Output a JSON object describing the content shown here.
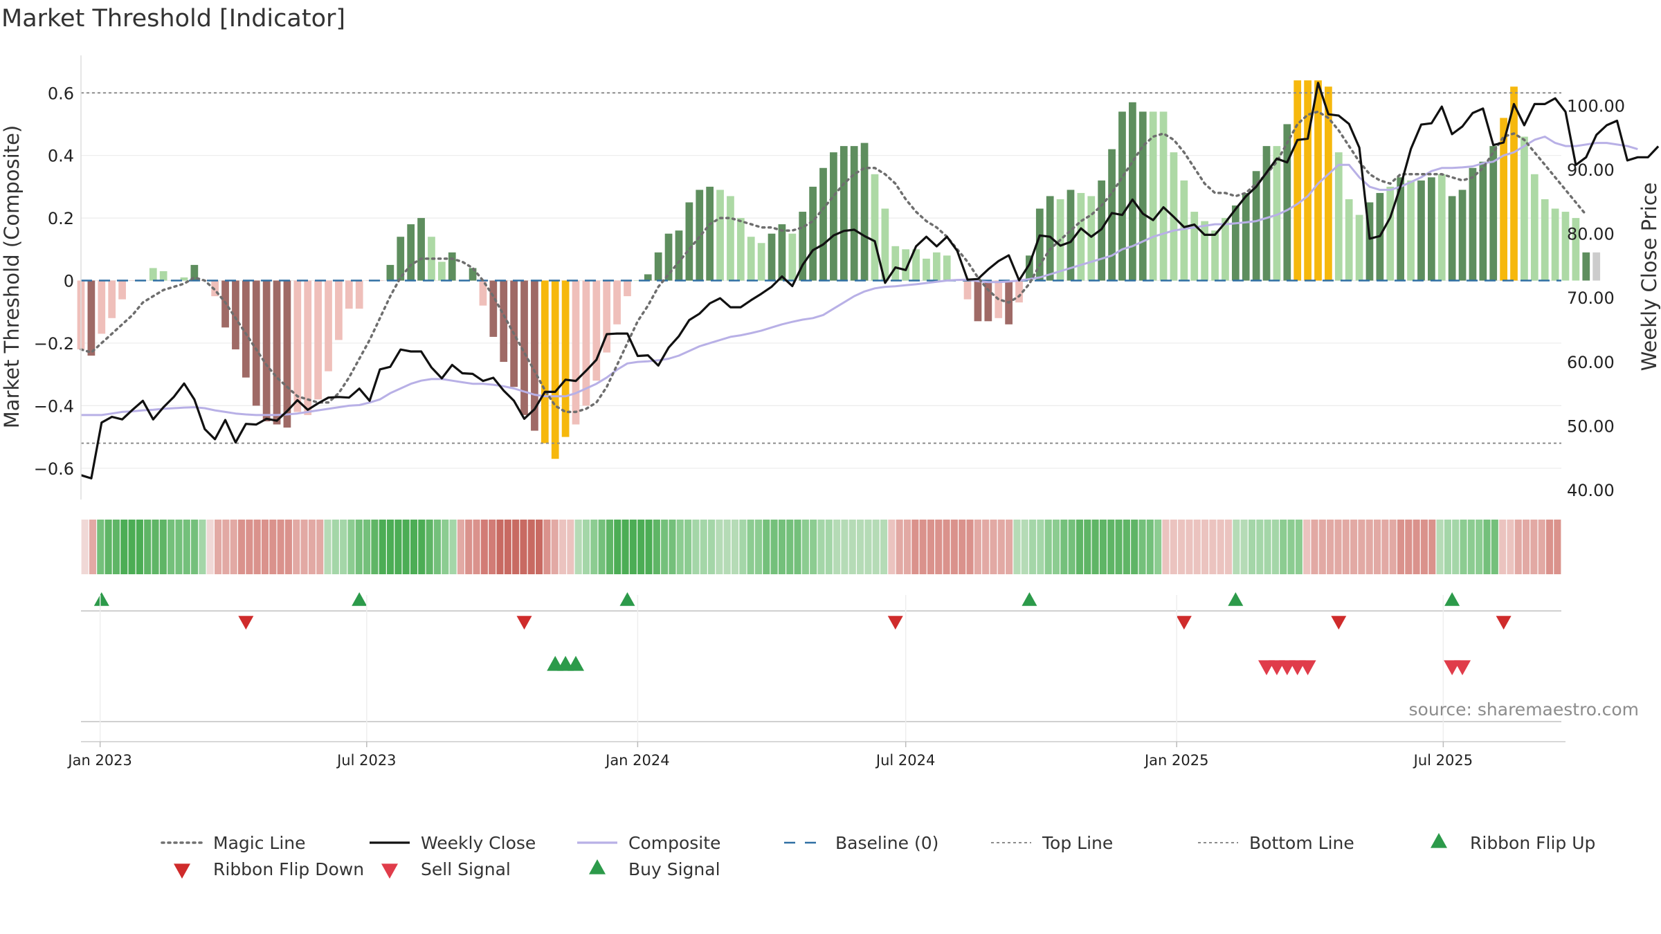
{
  "chart_data": {
    "type": "bar",
    "title": "Market Threshold [Indicator]",
    "ylabel_left": "Market Threshold (Composite)",
    "ylabel_right": "Weekly Close Price",
    "ylim_left": [
      -0.7,
      0.72
    ],
    "ylim_right": [
      38.5,
      107.8
    ],
    "yticks_left": [
      "0.6",
      "0.4",
      "0.2",
      "0",
      "−0.2",
      "−0.4",
      "−0.6"
    ],
    "yticks_left_values": [
      0.6,
      0.4,
      0.2,
      0,
      -0.2,
      -0.4,
      -0.6
    ],
    "yticks_right": [
      "100.00",
      "90.00",
      "80.00",
      "70.00",
      "60.00",
      "50.00",
      "40.00"
    ],
    "yticks_right_values": [
      100,
      90,
      80,
      70,
      60,
      50,
      40
    ],
    "x_range": [
      "2022-12-19",
      "2025-09-22"
    ],
    "date_ticks": [
      {
        "date": "2023-01-01",
        "label": "Jan 2023"
      },
      {
        "date": "2023-07-01",
        "label": "Jul 2023"
      },
      {
        "date": "2024-01-01",
        "label": "Jan 2024"
      },
      {
        "date": "2024-07-01",
        "label": "Jul 2024"
      },
      {
        "date": "2025-01-01",
        "label": "Jan 2025"
      },
      {
        "date": "2025-07-01",
        "label": "Jul 2025"
      }
    ],
    "top_line": 0.6,
    "bottom_line": -0.52,
    "baseline": 0,
    "first_week": "2022-12-19",
    "composite_bars": [
      -0.22,
      -0.24,
      -0.17,
      -0.12,
      -0.06,
      0,
      0,
      0.04,
      0.03,
      0,
      0.01,
      0.05,
      0,
      -0.05,
      -0.15,
      -0.22,
      -0.31,
      -0.4,
      -0.45,
      -0.46,
      -0.47,
      -0.42,
      -0.43,
      -0.38,
      -0.29,
      -0.19,
      -0.09,
      -0.09,
      0,
      0,
      0.05,
      0.14,
      0.18,
      0.2,
      0.14,
      0.06,
      0.09,
      0,
      0.04,
      -0.08,
      -0.18,
      -0.26,
      -0.34,
      -0.43,
      -0.48,
      -0.52,
      -0.57,
      -0.5,
      -0.46,
      -0.4,
      -0.32,
      -0.23,
      -0.14,
      -0.05,
      0,
      0.02,
      0.09,
      0.15,
      0.16,
      0.25,
      0.29,
      0.3,
      0.29,
      0.27,
      0.2,
      0.14,
      0.12,
      0.15,
      0.18,
      0.15,
      0.22,
      0.3,
      0.36,
      0.41,
      0.43,
      0.43,
      0.44,
      0.34,
      0.23,
      0.11,
      0.1,
      0.1,
      0.07,
      0.09,
      0.08,
      0,
      -0.06,
      -0.13,
      -0.13,
      -0.12,
      -0.14,
      -0.07,
      0.08,
      0.23,
      0.27,
      0.26,
      0.29,
      0.28,
      0.27,
      0.32,
      0.42,
      0.54,
      0.57,
      0.54,
      0.54,
      0.54,
      0.41,
      0.32,
      0.22,
      0.19,
      0.16,
      0.2,
      0.24,
      0.28,
      0.35,
      0.43,
      0.43,
      0.5,
      0.64,
      0.64,
      0.64,
      0.62,
      0.41,
      0.26,
      0.21,
      0.25,
      0.28,
      0.3,
      0.33,
      0.32,
      0.32,
      0.33,
      0.34,
      0.27,
      0.29,
      0.36,
      0.38,
      0.43,
      0.52,
      0.62,
      0.46,
      0.34,
      0.26,
      0.23,
      0.22,
      0.2,
      0.09,
      0.09
    ],
    "bar_colors": [
      "#efbfba",
      "#9f6a66",
      "#efbfba",
      "#efbfba",
      "#efbfba",
      "#efbfba",
      "#efbfba",
      "#add9a5",
      "#add9a5",
      "#add9a5",
      "#add9a5",
      "#5e8e5e",
      "#efbfba",
      "#efbfba",
      "#9f6a66",
      "#9f6a66",
      "#9f6a66",
      "#9f6a66",
      "#9f6a66",
      "#9f6a66",
      "#9f6a66",
      "#efbfba",
      "#efbfba",
      "#efbfba",
      "#efbfba",
      "#efbfba",
      "#efbfba",
      "#efbfba",
      "#efbfba",
      "#efbfba",
      "#5e8e5e",
      "#5e8e5e",
      "#5e8e5e",
      "#5e8e5e",
      "#add9a5",
      "#add9a5",
      "#5e8e5e",
      "#add9a5",
      "#5e8e5e",
      "#efbfba",
      "#9f6a66",
      "#9f6a66",
      "#9f6a66",
      "#9f6a66",
      "#9f6a66",
      "#f6b80d",
      "#f6b80d",
      "#f6b80d",
      "#efbfba",
      "#efbfba",
      "#efbfba",
      "#efbfba",
      "#efbfba",
      "#efbfba",
      "#add9a5",
      "#5e8e5e",
      "#5e8e5e",
      "#5e8e5e",
      "#5e8e5e",
      "#5e8e5e",
      "#5e8e5e",
      "#5e8e5e",
      "#add9a5",
      "#add9a5",
      "#add9a5",
      "#add9a5",
      "#add9a5",
      "#5e8e5e",
      "#5e8e5e",
      "#add9a5",
      "#5e8e5e",
      "#5e8e5e",
      "#5e8e5e",
      "#5e8e5e",
      "#5e8e5e",
      "#5e8e5e",
      "#5e8e5e",
      "#add9a5",
      "#add9a5",
      "#add9a5",
      "#add9a5",
      "#add9a5",
      "#add9a5",
      "#add9a5",
      "#add9a5",
      "#efbfba",
      "#efbfba",
      "#9f6a66",
      "#9f6a66",
      "#efbfba",
      "#9f6a66",
      "#efbfba",
      "#5e8e5e",
      "#5e8e5e",
      "#5e8e5e",
      "#add9a5",
      "#5e8e5e",
      "#add9a5",
      "#add9a5",
      "#5e8e5e",
      "#5e8e5e",
      "#5e8e5e",
      "#5e8e5e",
      "#5e8e5e",
      "#add9a5",
      "#add9a5",
      "#add9a5",
      "#add9a5",
      "#add9a5",
      "#add9a5",
      "#add9a5",
      "#add9a5",
      "#5e8e5e",
      "#5e8e5e",
      "#5e8e5e",
      "#5e8e5e",
      "#add9a5",
      "#5e8e5e",
      "#f6b80d",
      "#f6b80d",
      "#f6b80d",
      "#f6b80d",
      "#add9a5",
      "#add9a5",
      "#add9a5",
      "#5e8e5e",
      "#5e8e5e",
      "#add9a5",
      "#5e8e5e",
      "#add9a5",
      "#5e8e5e",
      "#5e8e5e",
      "#add9a5",
      "#5e8e5e",
      "#5e8e5e",
      "#5e8e5e",
      "#5e8e5e",
      "#5e8e5e",
      "#f6b80d",
      "#f6b80d",
      "#add9a5",
      "#add9a5",
      "#add9a5",
      "#add9a5",
      "#add9a5",
      "#add9a5",
      "#5e8e5e"
    ],
    "weekly_close": [
      42.3,
      41.8,
      50.5,
      51.4,
      51,
      52.5,
      53.9,
      51,
      52.9,
      54.5,
      56.6,
      54.1,
      49.5,
      47.9,
      50.9,
      47.4,
      50.3,
      50.2,
      51.1,
      50.8,
      52.3,
      54,
      52.5,
      53.5,
      54.4,
      54.5,
      54.4,
      55.8,
      53.9,
      58.8,
      59.2,
      61.9,
      61.6,
      61.6,
      59.1,
      57.4,
      59.5,
      58.2,
      58.1,
      57,
      57.5,
      55.5,
      53.9,
      51.1,
      52.6,
      55.3,
      55.3,
      57.2,
      57,
      58.6,
      60.3,
      64.3,
      64.4,
      64.4,
      60.9,
      61,
      59.4,
      62.2,
      64,
      66.5,
      67.5,
      69.1,
      69.9,
      68.5,
      68.5,
      69.6,
      70.6,
      71.7,
      73.3,
      71.8,
      75.1,
      77.4,
      78.3,
      79.7,
      80.4,
      80.6,
      79.6,
      78.8,
      72.3,
      74.7,
      74.3,
      78,
      79.5,
      78,
      79.5,
      77.3,
      72.8,
      72.9,
      74.4,
      75.7,
      76.6,
      72.7,
      75.2,
      79.7,
      79.5,
      78.1,
      78.7,
      80.8,
      79.5,
      80.7,
      83.2,
      82.9,
      85.3,
      83.1,
      82.1,
      84.1,
      82.6,
      81,
      81.4,
      79.8,
      79.8,
      81.7,
      83.8,
      85.8,
      87.3,
      89.5,
      91.7,
      91.1,
      94.6,
      94.8,
      103.5,
      98.6,
      98.4,
      97.1,
      93.4,
      79.2,
      79.6,
      82.5,
      87.4,
      93.2,
      97,
      97.2,
      99.8,
      95.5,
      96.7,
      98.8,
      99.5,
      93.8,
      94.2,
      100.2,
      96.9,
      100.2,
      100.2,
      101.1,
      99,
      90.7,
      91.9,
      95.4,
      96.9,
      97.6,
      91.4,
      91.9,
      91.9,
      93.6
    ],
    "magic_line": [
      -0.22,
      -0.23,
      -0.2,
      -0.17,
      -0.14,
      -0.11,
      -0.07,
      -0.05,
      -0.03,
      -0.02,
      -0.01,
      0.01,
      0,
      -0.03,
      -0.07,
      -0.12,
      -0.17,
      -0.22,
      -0.27,
      -0.31,
      -0.34,
      -0.37,
      -0.38,
      -0.39,
      -0.39,
      -0.36,
      -0.31,
      -0.25,
      -0.19,
      -0.12,
      -0.05,
      0.01,
      0.05,
      0.07,
      0.07,
      0.07,
      0.07,
      0.06,
      0.04,
      0,
      -0.05,
      -0.11,
      -0.17,
      -0.23,
      -0.29,
      -0.35,
      -0.4,
      -0.42,
      -0.42,
      -0.41,
      -0.39,
      -0.34,
      -0.27,
      -0.2,
      -0.13,
      -0.08,
      -0.02,
      0.02,
      0.06,
      0.1,
      0.14,
      0.18,
      0.2,
      0.2,
      0.19,
      0.18,
      0.17,
      0.17,
      0.16,
      0.16,
      0.17,
      0.19,
      0.23,
      0.27,
      0.31,
      0.34,
      0.36,
      0.36,
      0.34,
      0.31,
      0.26,
      0.22,
      0.19,
      0.17,
      0.14,
      0.1,
      0.06,
      0.01,
      -0.03,
      -0.06,
      -0.07,
      -0.05,
      -0.01,
      0.05,
      0.1,
      0.13,
      0.16,
      0.19,
      0.21,
      0.24,
      0.28,
      0.33,
      0.38,
      0.43,
      0.46,
      0.47,
      0.45,
      0.41,
      0.36,
      0.31,
      0.28,
      0.28,
      0.27,
      0.28,
      0.31,
      0.34,
      0.38,
      0.44,
      0.5,
      0.53,
      0.54,
      0.52,
      0.48,
      0.43,
      0.38,
      0.34,
      0.32,
      0.31,
      0.34,
      0.34,
      0.34,
      0.34,
      0.34,
      0.33,
      0.32,
      0.33,
      0.36,
      0.41,
      0.46,
      0.47,
      0.45,
      0.41,
      0.37,
      0.33,
      0.29,
      0.25,
      0.21
    ],
    "composite_line": [
      -0.43,
      -0.43,
      -0.43,
      -0.425,
      -0.42,
      -0.418,
      -0.415,
      -0.413,
      -0.41,
      -0.408,
      -0.406,
      -0.405,
      -0.408,
      -0.415,
      -0.42,
      -0.425,
      -0.428,
      -0.43,
      -0.43,
      -0.43,
      -0.428,
      -0.425,
      -0.42,
      -0.415,
      -0.41,
      -0.405,
      -0.4,
      -0.398,
      -0.39,
      -0.38,
      -0.36,
      -0.345,
      -0.33,
      -0.32,
      -0.315,
      -0.315,
      -0.32,
      -0.325,
      -0.33,
      -0.33,
      -0.333,
      -0.338,
      -0.345,
      -0.355,
      -0.365,
      -0.37,
      -0.37,
      -0.37,
      -0.36,
      -0.345,
      -0.33,
      -0.31,
      -0.285,
      -0.265,
      -0.26,
      -0.258,
      -0.255,
      -0.25,
      -0.24,
      -0.225,
      -0.21,
      -0.2,
      -0.19,
      -0.18,
      -0.175,
      -0.168,
      -0.16,
      -0.15,
      -0.14,
      -0.132,
      -0.125,
      -0.12,
      -0.11,
      -0.09,
      -0.07,
      -0.05,
      -0.035,
      -0.025,
      -0.02,
      -0.018,
      -0.015,
      -0.012,
      -0.008,
      -0.004,
      0,
      0.002,
      0.003,
      -0.002,
      -0.005,
      -0.005,
      -0.003,
      0,
      0.005,
      0.01,
      0.02,
      0.03,
      0.04,
      0.05,
      0.06,
      0.07,
      0.08,
      0.1,
      0.11,
      0.125,
      0.14,
      0.15,
      0.16,
      0.165,
      0.17,
      0.175,
      0.18,
      0.18,
      0.183,
      0.186,
      0.19,
      0.2,
      0.21,
      0.225,
      0.245,
      0.27,
      0.31,
      0.34,
      0.37,
      0.37,
      0.33,
      0.3,
      0.29,
      0.29,
      0.3,
      0.315,
      0.33,
      0.35,
      0.36,
      0.36,
      0.362,
      0.365,
      0.375,
      0.38,
      0.4,
      0.41,
      0.43,
      0.45,
      0.46,
      0.44,
      0.43,
      0.43,
      0.435,
      0.44,
      0.44,
      0.435,
      0.43,
      0.42
    ],
    "ribbon_colors": [
      "#f0d8d6",
      "#e2a9a4",
      "#74c07b",
      "#5fb566",
      "#5fb566",
      "#4cad55",
      "#4cad55",
      "#4cad55",
      "#5fb566",
      "#5fb566",
      "#5fb566",
      "#74c07b",
      "#74c07b",
      "#74c07b",
      "#74c07b",
      "#a4d6a8",
      "#f0d8d6",
      "#e2a9a4",
      "#e2a9a4",
      "#e2a9a4",
      "#da928c",
      "#da928c",
      "#da928c",
      "#da928c",
      "#da928c",
      "#da928c",
      "#da928c",
      "#e2a9a4",
      "#e2a9a4",
      "#e2a9a4",
      "#e2a9a4",
      "#b5dbb6",
      "#a4d6a8",
      "#a4d6a8",
      "#8ccc91",
      "#74c07b",
      "#74c07b",
      "#5fb566",
      "#4cad55",
      "#4cad55",
      "#4cad55",
      "#4cad55",
      "#4cad55",
      "#4cad55",
      "#5fb566",
      "#74c07b",
      "#8ccc91",
      "#a4d6a8",
      "#e2a9a4",
      "#da928c",
      "#da928c",
      "#d27c76",
      "#d27c76",
      "#c86a62",
      "#c86a62",
      "#c86a62",
      "#c86a62",
      "#c86a62",
      "#c86a62",
      "#da928c",
      "#e2a9a4",
      "#ebc3bf",
      "#ebc3bf",
      "#b5dbb6",
      "#a4d6a8",
      "#8ccc91",
      "#74c07b",
      "#5fb566",
      "#4cad55",
      "#4cad55",
      "#4cad55",
      "#4cad55",
      "#4cad55",
      "#5fb566",
      "#74c07b",
      "#74c07b",
      "#8ccc91",
      "#8ccc91",
      "#a4d6a8",
      "#a4d6a8",
      "#a4d6a8",
      "#b5dbb6",
      "#b5dbb6",
      "#b5dbb6",
      "#a4d6a8",
      "#8ccc91",
      "#8ccc91",
      "#74c07b",
      "#74c07b",
      "#74c07b",
      "#74c07b",
      "#74c07b",
      "#8ccc91",
      "#8ccc91",
      "#a4d6a8",
      "#a4d6a8",
      "#b5dbb6",
      "#b5dbb6",
      "#b5dbb6",
      "#b5dbb6",
      "#b5dbb6",
      "#b5dbb6",
      "#b5dbb6",
      "#ebc3bf",
      "#e2a9a4",
      "#e2a9a4",
      "#da928c",
      "#da928c",
      "#da928c",
      "#da928c",
      "#da928c",
      "#da928c",
      "#da928c",
      "#da928c",
      "#e2a9a4",
      "#e2a9a4",
      "#e2a9a4",
      "#e2a9a4",
      "#e2a9a4",
      "#b5dbb6",
      "#b5dbb6",
      "#a4d6a8",
      "#a4d6a8",
      "#8ccc91",
      "#8ccc91",
      "#74c07b",
      "#74c07b",
      "#5fb566",
      "#5fb566",
      "#5fb566",
      "#5fb566",
      "#5fb566",
      "#5fb566",
      "#5fb566",
      "#5fb566",
      "#74c07b",
      "#74c07b",
      "#8ccc91",
      "#ebc3bf",
      "#ebc3bf",
      "#ebc3bf",
      "#ebc3bf",
      "#ebc3bf",
      "#ebc3bf",
      "#ebc3bf",
      "#ebc3bf",
      "#ebc3bf",
      "#b5dbb6",
      "#b5dbb6",
      "#a4d6a8",
      "#a4d6a8",
      "#a4d6a8",
      "#a4d6a8",
      "#8ccc91",
      "#8ccc91",
      "#8ccc91",
      "#ebc3bf",
      "#e2a9a4",
      "#e2a9a4",
      "#e2a9a4",
      "#e2a9a4",
      "#e2a9a4",
      "#e2a9a4",
      "#e2a9a4",
      "#e2a9a4",
      "#e2a9a4",
      "#e2a9a4",
      "#e2a9a4",
      "#da928c",
      "#da928c",
      "#da928c",
      "#da928c",
      "#da928c",
      "#b5dbb6",
      "#a4d6a8",
      "#a4d6a8",
      "#8ccc91",
      "#8ccc91",
      "#8ccc91",
      "#74c07b",
      "#74c07b",
      "#ebc3bf",
      "#ebc3bf",
      "#e2a9a4",
      "#e2a9a4",
      "#e2a9a4",
      "#e2a9a4",
      "#da928c",
      "#da928c"
    ],
    "ribbon_flip_up_dates": [
      "2023-01-02",
      "2023-06-26",
      "2023-12-25",
      "2024-09-23",
      "2025-02-10",
      "2025-07-07"
    ],
    "ribbon_flip_down_dates": [
      "2023-04-10",
      "2023-10-16",
      "2024-06-24",
      "2025-01-06",
      "2025-04-21",
      "2025-08-11"
    ],
    "buy_signal_dates": [
      "2023-11-06",
      "2023-11-13",
      "2023-11-20"
    ],
    "sell_signal_dates": [
      "2025-03-03",
      "2025-03-10",
      "2025-03-17",
      "2025-03-24",
      "2025-03-31",
      "2025-07-07",
      "2025-07-14"
    ],
    "legend": [
      {
        "label": "Magic Line",
        "kind": "dotted-line",
        "color": "#707070"
      },
      {
        "label": "Weekly Close",
        "kind": "solid-line",
        "color": "#111111"
      },
      {
        "label": "Composite",
        "kind": "solid-line",
        "color": "#b8b0e6"
      },
      {
        "label": "Baseline (0)",
        "kind": "dashed-line",
        "color": "#2f6fa3"
      },
      {
        "label": "Top Line",
        "kind": "dotted-thin",
        "color": "#8c8c8c"
      },
      {
        "label": "Bottom Line",
        "kind": "dotted-thin",
        "color": "#8c8c8c"
      },
      {
        "label": "Ribbon Flip Up",
        "kind": "triangle-up",
        "color": "#2c9a4a"
      },
      {
        "label": "Ribbon Flip Down",
        "kind": "triangle-down",
        "color": "#cf2b2b"
      },
      {
        "label": "Sell Signal",
        "kind": "triangle-down",
        "color": "#e03c4a"
      },
      {
        "label": "Buy Signal",
        "kind": "triangle-up",
        "color": "#2c9a4a"
      }
    ],
    "source": "source: sharemaestro.com",
    "colors": {
      "weekly_close": "#111111",
      "magic_line": "#6e6e6e",
      "composite_line": "#b8b0e6",
      "baseline": "#2f6fa3",
      "threshold_lines": "#8c8c8c",
      "flip_up": "#2c9a4a",
      "flip_down": "#cf2b2b",
      "sell_signal": "#e03c4a",
      "buy_signal": "#2c9a4a"
    }
  }
}
